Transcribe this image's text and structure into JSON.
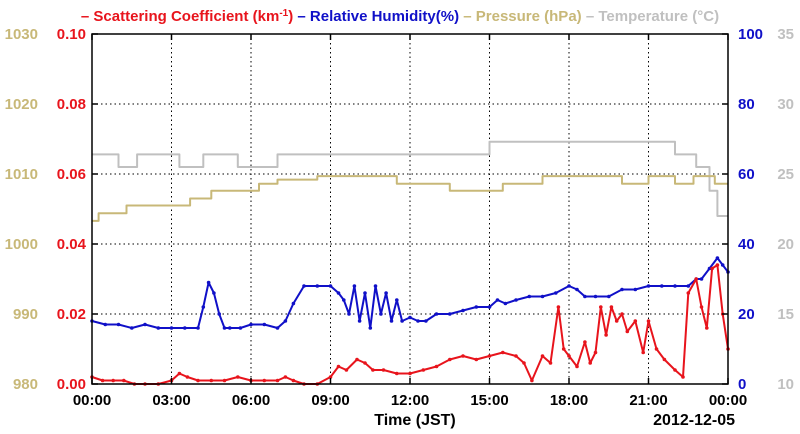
{
  "chart_data": {
    "type": "line",
    "legend": {
      "placement": "top",
      "entries": [
        {
          "dash": "–",
          "label": "Scattering Coefficient (km",
          "sup": "-1",
          "tail": ")",
          "color": "#e8141c"
        },
        {
          "dash": "–",
          "label": "Relative Humidity(%)",
          "color": "#1010c8"
        },
        {
          "dash": "–",
          "label": "Pressure (hPa)",
          "color": "#c8b878"
        },
        {
          "dash": "–",
          "label": "Temperature (°C)",
          "color": "#c0c0c0"
        }
      ]
    },
    "x": {
      "label": "Time (JST)",
      "date": "2012-12-05",
      "range_hours": [
        0,
        24
      ],
      "ticks": [
        "00:00",
        "03:00",
        "06:00",
        "09:00",
        "12:00",
        "15:00",
        "18:00",
        "21:00",
        "00:00"
      ]
    },
    "axes": {
      "pressure": {
        "side": "left-outer",
        "color": "#c8b878",
        "range": [
          980,
          1030
        ],
        "ticks": [
          "980",
          "990",
          "1000",
          "1010",
          "1020",
          "1030"
        ]
      },
      "scattering": {
        "side": "left-inner",
        "color": "#e8141c",
        "range": [
          0,
          0.1
        ],
        "ticks": [
          "0.00",
          "0.02",
          "0.04",
          "0.06",
          "0.08",
          "0.10"
        ]
      },
      "humidity": {
        "side": "right-inner",
        "color": "#1010c8",
        "range": [
          0,
          100
        ],
        "ticks": [
          "0",
          "20",
          "40",
          "60",
          "80",
          "100"
        ]
      },
      "temperature": {
        "side": "right-outer",
        "color": "#c0c0c0",
        "range": [
          10,
          35
        ],
        "ticks": [
          "10",
          "15",
          "20",
          "25",
          "30",
          "35"
        ]
      }
    },
    "grid": true,
    "series": [
      {
        "name": "Temperature (°C)",
        "axis": "temperature",
        "color": "#c0c0c0",
        "x": [
          0,
          1.0,
          1.0,
          1.7,
          1.7,
          3.3,
          3.3,
          4.2,
          4.2,
          5.5,
          5.5,
          7.0,
          7.0,
          9.0,
          9.0,
          15.0,
          15.0,
          22.0,
          22.0,
          22.8,
          22.8,
          23.3,
          23.3,
          23.6,
          23.6,
          24
        ],
        "y": [
          26.4,
          26.4,
          25.5,
          25.5,
          26.4,
          26.4,
          25.5,
          25.5,
          26.4,
          26.4,
          25.5,
          25.5,
          26.4,
          26.4,
          26.4,
          26.4,
          27.3,
          27.3,
          26.4,
          26.4,
          25.5,
          25.5,
          23.8,
          23.8,
          22.0,
          22.0
        ]
      },
      {
        "name": "Pressure (hPa)",
        "axis": "pressure",
        "color": "#c8b878",
        "x": [
          0,
          0.25,
          0.25,
          1.3,
          1.3,
          3.7,
          3.7,
          4.5,
          4.5,
          5.8,
          5.8,
          6.3,
          6.3,
          7.0,
          7.0,
          8.5,
          8.5,
          10.0,
          10.0,
          11.5,
          11.5,
          13.5,
          13.5,
          15.5,
          15.5,
          17.0,
          17.0,
          18.5,
          18.5,
          20.0,
          20.0,
          21.0,
          21.0,
          22.0,
          22.0,
          22.7,
          22.7,
          23.5,
          23.5,
          24
        ],
        "y": [
          1003.3,
          1003.3,
          1004.4,
          1004.4,
          1005.5,
          1005.5,
          1006.5,
          1006.5,
          1007.6,
          1007.6,
          1007.6,
          1007.6,
          1008.6,
          1008.6,
          1009.2,
          1009.2,
          1009.7,
          1009.7,
          1009.7,
          1009.7,
          1008.6,
          1008.6,
          1007.6,
          1007.6,
          1008.6,
          1008.6,
          1009.7,
          1009.7,
          1009.7,
          1009.7,
          1008.6,
          1008.6,
          1009.7,
          1009.7,
          1008.6,
          1008.6,
          1009.7,
          1009.7,
          1008.6,
          1008.6
        ]
      },
      {
        "name": "Relative Humidity(%)",
        "axis": "humidity",
        "color": "#1010c8",
        "x": [
          0,
          0.5,
          1.0,
          1.5,
          2.0,
          2.5,
          3.0,
          3.5,
          4.0,
          4.2,
          4.4,
          4.6,
          4.8,
          5.0,
          5.2,
          5.6,
          6.0,
          6.5,
          7.0,
          7.3,
          7.6,
          8.0,
          8.5,
          9.0,
          9.3,
          9.5,
          9.7,
          9.9,
          10.1,
          10.3,
          10.5,
          10.7,
          10.9,
          11.1,
          11.3,
          11.5,
          11.7,
          12.0,
          12.3,
          12.6,
          13.0,
          13.5,
          14.0,
          14.5,
          15.0,
          15.3,
          15.6,
          16.0,
          16.5,
          17.0,
          17.5,
          18.0,
          18.3,
          18.6,
          19.0,
          19.5,
          20.0,
          20.5,
          21.0,
          21.5,
          22.0,
          22.5,
          22.8,
          23.0,
          23.3,
          23.6,
          23.8,
          24
        ],
        "y": [
          18,
          17,
          17,
          16,
          17,
          16,
          16,
          16,
          16,
          22,
          29,
          26,
          20,
          16,
          16,
          16,
          17,
          17,
          16,
          18,
          23,
          28,
          28,
          28,
          26,
          24,
          20,
          28,
          18,
          26,
          16,
          28,
          20,
          26,
          18,
          24,
          18,
          19,
          18,
          18,
          20,
          20,
          21,
          22,
          22,
          24,
          23,
          24,
          25,
          25,
          26,
          28,
          27,
          25,
          25,
          25,
          27,
          27,
          28,
          28,
          28,
          28,
          30,
          30,
          33,
          36,
          34,
          32
        ]
      },
      {
        "name": "Scattering Coefficient (km-1)",
        "axis": "scattering",
        "color": "#e8141c",
        "x": [
          0,
          0.4,
          0.8,
          1.2,
          1.6,
          2.0,
          2.5,
          3.0,
          3.3,
          3.6,
          4.0,
          4.5,
          5.0,
          5.5,
          6.0,
          6.5,
          7.0,
          7.3,
          7.6,
          8.0,
          8.5,
          9.0,
          9.3,
          9.6,
          10.0,
          10.3,
          10.6,
          11.0,
          11.5,
          12.0,
          12.5,
          13.0,
          13.5,
          14.0,
          14.5,
          15.0,
          15.5,
          16.0,
          16.3,
          16.6,
          17.0,
          17.3,
          17.6,
          17.8,
          18.0,
          18.3,
          18.6,
          18.8,
          19.0,
          19.2,
          19.4,
          19.6,
          19.8,
          20.0,
          20.2,
          20.5,
          20.8,
          21.0,
          21.3,
          21.6,
          22.0,
          22.3,
          22.5,
          22.8,
          23.0,
          23.2,
          23.4,
          23.6,
          23.8,
          24
        ],
        "y": [
          0.002,
          0.001,
          0.001,
          0.001,
          0.0,
          0.0,
          0.0,
          0.001,
          0.003,
          0.002,
          0.001,
          0.001,
          0.001,
          0.002,
          0.001,
          0.001,
          0.001,
          0.002,
          0.001,
          0.0,
          0.0,
          0.002,
          0.005,
          0.004,
          0.007,
          0.006,
          0.004,
          0.004,
          0.003,
          0.003,
          0.004,
          0.005,
          0.007,
          0.008,
          0.007,
          0.008,
          0.009,
          0.008,
          0.006,
          0.001,
          0.008,
          0.006,
          0.022,
          0.01,
          0.008,
          0.005,
          0.012,
          0.006,
          0.009,
          0.022,
          0.014,
          0.022,
          0.018,
          0.02,
          0.015,
          0.018,
          0.009,
          0.018,
          0.01,
          0.007,
          0.004,
          0.002,
          0.026,
          0.03,
          0.022,
          0.016,
          0.033,
          0.034,
          0.02,
          0.01
        ]
      }
    ]
  }
}
